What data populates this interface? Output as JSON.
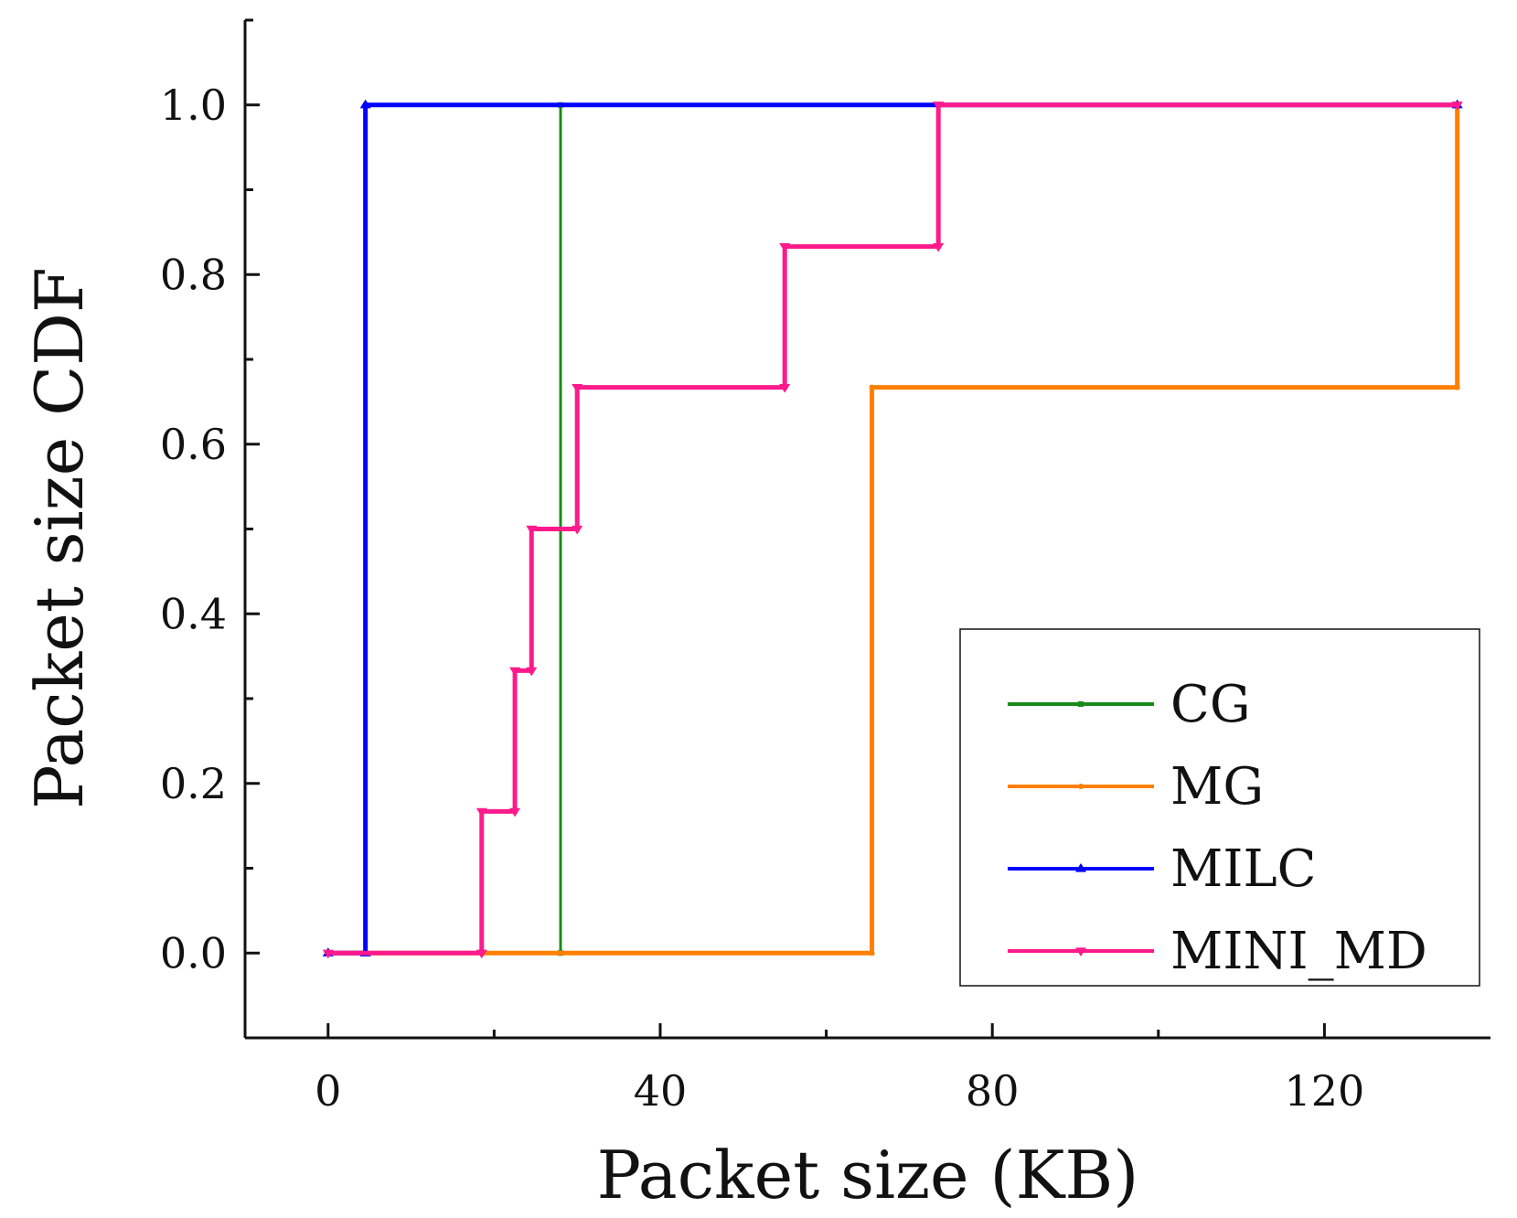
{
  "chart_data": {
    "type": "line",
    "title": "",
    "xlabel": "Packet size (KB)",
    "ylabel": "Packet size CDF",
    "xlim": [
      -10,
      140
    ],
    "ylim": [
      -0.1,
      1.1
    ],
    "xticks": [
      0,
      40,
      80,
      120
    ],
    "xtick_labels": [
      "0",
      "40",
      "80",
      "120"
    ],
    "yticks": [
      0.0,
      0.2,
      0.4,
      0.6,
      0.8,
      1.0
    ],
    "ytick_labels": [
      "0.0",
      "0.2",
      "0.4",
      "0.6",
      "0.8",
      "1.0"
    ],
    "legend_position": "bottom-right",
    "series": [
      {
        "name": "CG",
        "color": "#1a8a1a",
        "marker": "square",
        "x": [
          0,
          28,
          28,
          136
        ],
        "y": [
          0.0,
          0.0,
          1.0,
          1.0
        ]
      },
      {
        "name": "MG",
        "color": "#ff8000",
        "marker": "circle",
        "x": [
          0,
          65.5,
          65.5,
          136,
          136
        ],
        "y": [
          0.0,
          0.0,
          0.667,
          0.667,
          1.0
        ]
      },
      {
        "name": "MILC",
        "color": "#0000ff",
        "marker": "triangle-up",
        "x": [
          0,
          4.5,
          4.5,
          136
        ],
        "y": [
          0.0,
          0.0,
          1.0,
          1.0
        ]
      },
      {
        "name": "MINI_MD",
        "color": "#ff1a8c",
        "marker": "triangle-down",
        "x": [
          0,
          18.5,
          18.5,
          22.5,
          22.5,
          24.5,
          24.5,
          30,
          30,
          55,
          55,
          73.5,
          73.5,
          136
        ],
        "y": [
          0.0,
          0.0,
          0.167,
          0.167,
          0.333,
          0.333,
          0.5,
          0.5,
          0.667,
          0.667,
          0.833,
          0.833,
          1.0,
          1.0
        ]
      }
    ]
  }
}
